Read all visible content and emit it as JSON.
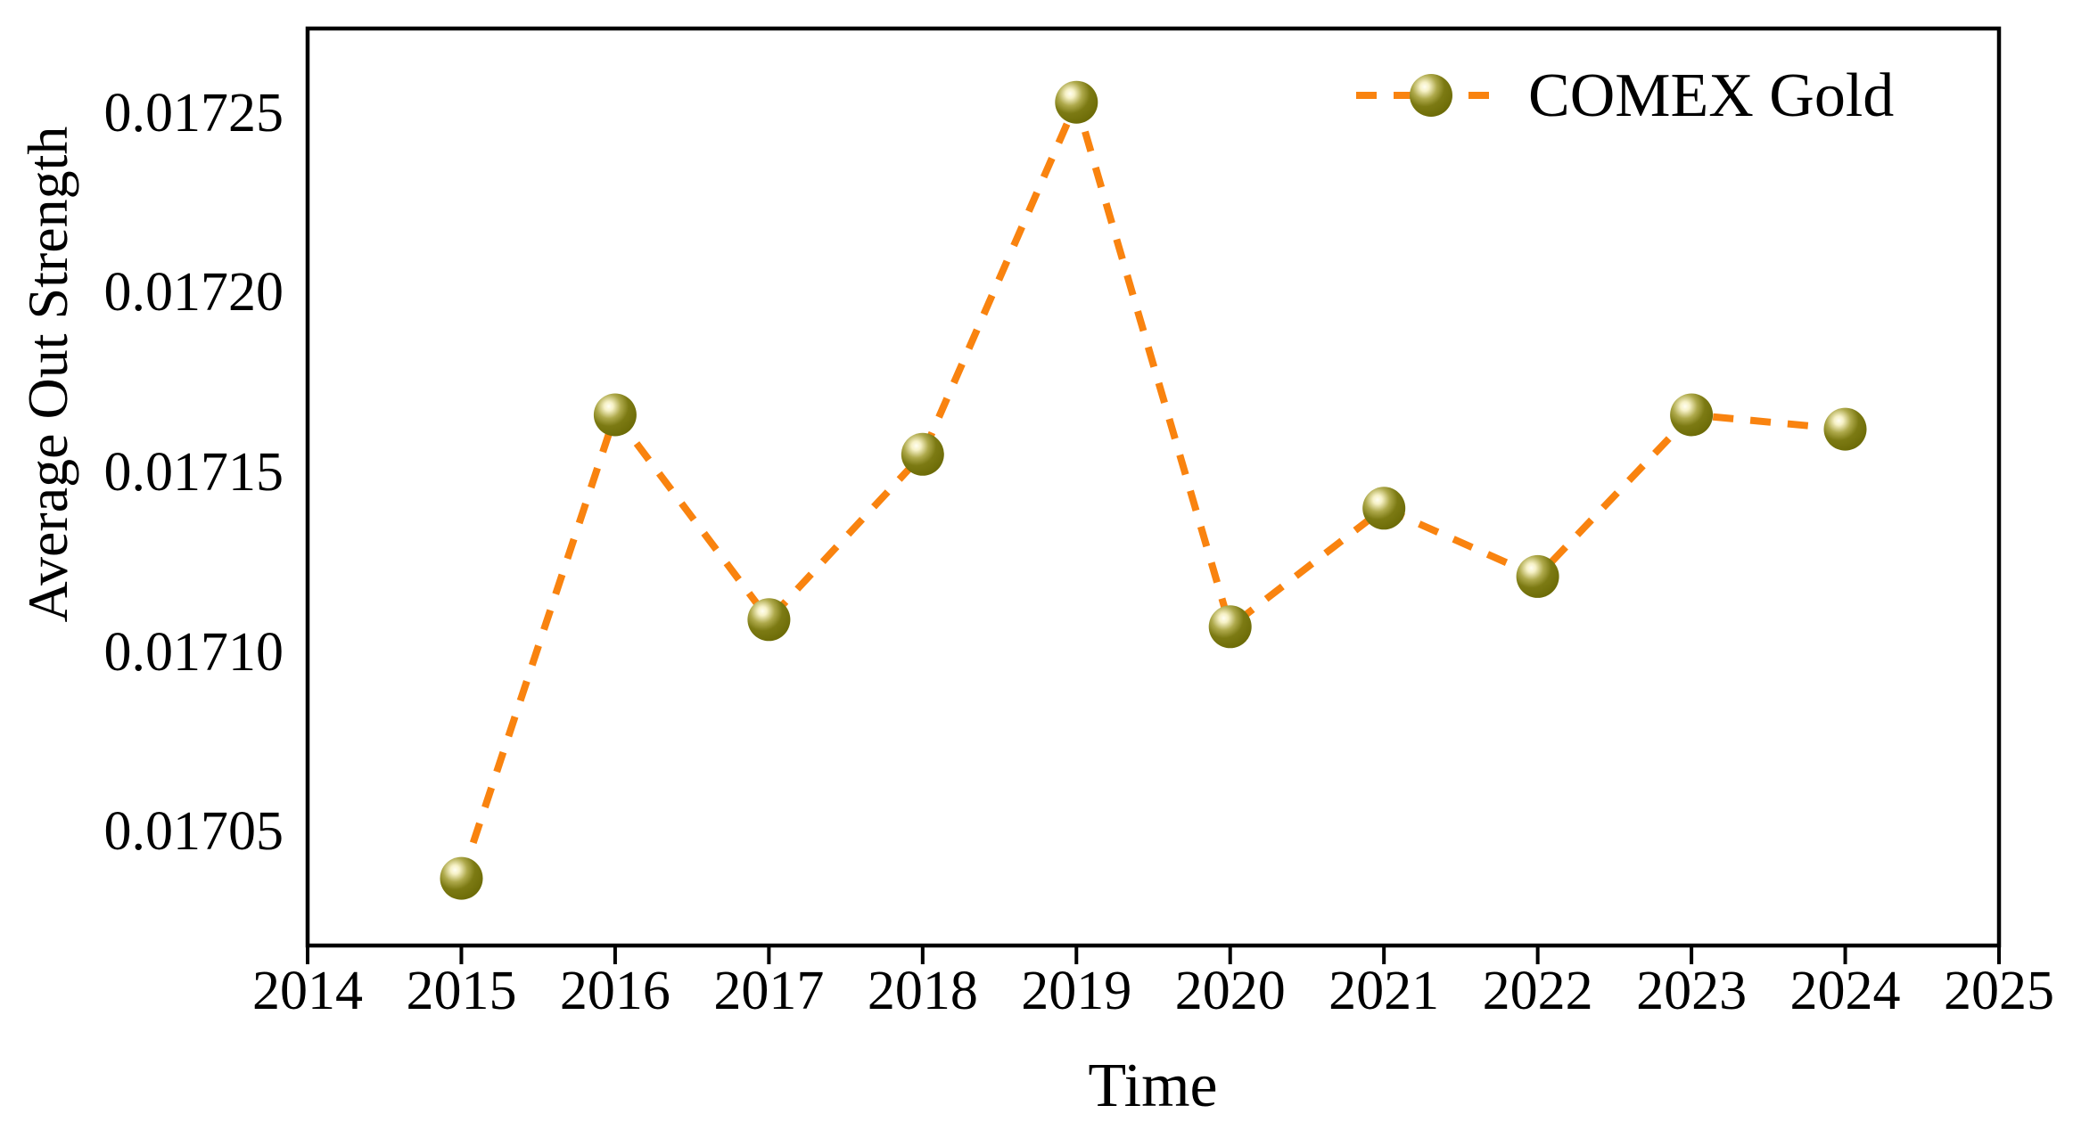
{
  "chart_data": {
    "type": "line",
    "title": "",
    "xlabel": "Time",
    "ylabel": "Average Out Strength",
    "series": [
      {
        "name": "COMEX Gold",
        "x": [
          2015,
          2016,
          2017,
          2018,
          2019,
          2020,
          2021,
          2022,
          2023,
          2024
        ],
        "values": [
          0.017037,
          0.017166,
          0.017109,
          0.017155,
          0.017253,
          0.017107,
          0.01714,
          0.017121,
          0.017166,
          0.017162
        ],
        "line_style": "dashed",
        "marker": "olive-sphere"
      }
    ],
    "x_ticks": [
      {
        "label": "2014",
        "value": 2014
      },
      {
        "label": "2015",
        "value": 2015
      },
      {
        "label": "2016",
        "value": 2016
      },
      {
        "label": "2017",
        "value": 2017
      },
      {
        "label": "2018",
        "value": 2018
      },
      {
        "label": "2019",
        "value": 2019
      },
      {
        "label": "2020",
        "value": 2020
      },
      {
        "label": "2021",
        "value": 2021
      },
      {
        "label": "2022",
        "value": 2022
      },
      {
        "label": "2023",
        "value": 2023
      },
      {
        "label": "2024",
        "value": 2024
      },
      {
        "label": "2025",
        "value": 2025
      }
    ],
    "y_ticks": [
      {
        "label": "0.01725",
        "value": 0.01725
      },
      {
        "label": "0.01720",
        "value": 0.0172
      },
      {
        "label": "0.01715",
        "value": 0.01715
      },
      {
        "label": "0.01710",
        "value": 0.0171
      },
      {
        "label": "0.01705",
        "value": 0.01705
      }
    ],
    "xlim": [
      2014,
      2025
    ],
    "ylim": [
      0.0170183,
      0.0172735
    ],
    "grid": false,
    "legend": {
      "position": "upper-right",
      "entries": [
        {
          "label": "COMEX Gold"
        }
      ]
    },
    "colors": {
      "line": "#F9830F",
      "marker_highlight": "#FFFEF2",
      "marker_light": "#F6F1C6",
      "marker_mid": "#AEA94B",
      "marker_body": "#7C7A13",
      "marker_edge": "#6B6A06",
      "axis": "#000000",
      "text": "#000000",
      "background": "#FFFFFF"
    }
  }
}
